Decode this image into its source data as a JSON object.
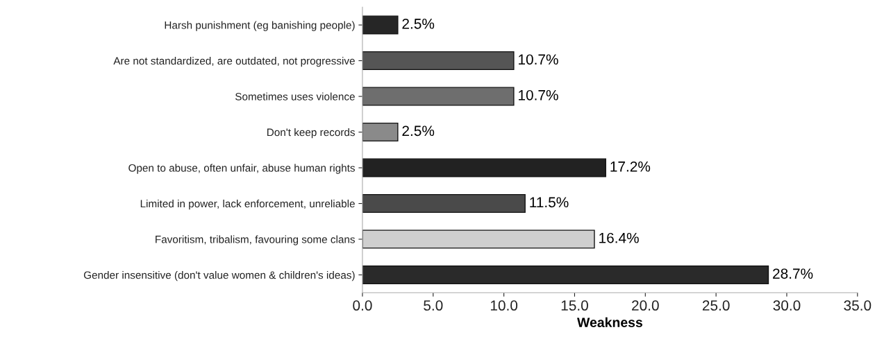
{
  "chart_data": {
    "type": "bar",
    "orientation": "horizontal",
    "xlabel": "Weakness",
    "categories": [
      "Harsh punishment (eg banishing people)",
      "Are not standardized, are outdated, not progressive",
      "Sometimes uses violence",
      "Don't keep records",
      "Open to abuse, often unfair, abuse human rights",
      "Limited in power, lack enforcement, unreliable",
      "Favoritism, tribalism, favouring some clans",
      "Gender insensitive (don't value women & children's ideas)"
    ],
    "values": [
      2.5,
      10.7,
      10.7,
      2.5,
      17.2,
      11.5,
      16.4,
      28.7
    ],
    "colors": [
      "#262626",
      "#555555",
      "#6e6e6e",
      "#8a8a8a",
      "#222222",
      "#4a4a4a",
      "#cfcfcf",
      "#2a2a2a"
    ],
    "value_labels": [
      "2.5%",
      "10.7%",
      "10.7%",
      "2.5%",
      "17.2%",
      "11.5%",
      "16.4%",
      "28.7%"
    ],
    "xlim": [
      0,
      35
    ],
    "xticks": [
      {
        "value": 0,
        "label": "0.0"
      },
      {
        "value": 5,
        "label": "5.0"
      },
      {
        "value": 10,
        "label": "10.0"
      },
      {
        "value": 15,
        "label": "15.0"
      },
      {
        "value": 20,
        "label": "20.0"
      },
      {
        "value": 25,
        "label": "25.0"
      },
      {
        "value": 30,
        "label": "30.0"
      },
      {
        "value": 35,
        "label": "35.0"
      }
    ],
    "grid": false,
    "legend": false
  }
}
